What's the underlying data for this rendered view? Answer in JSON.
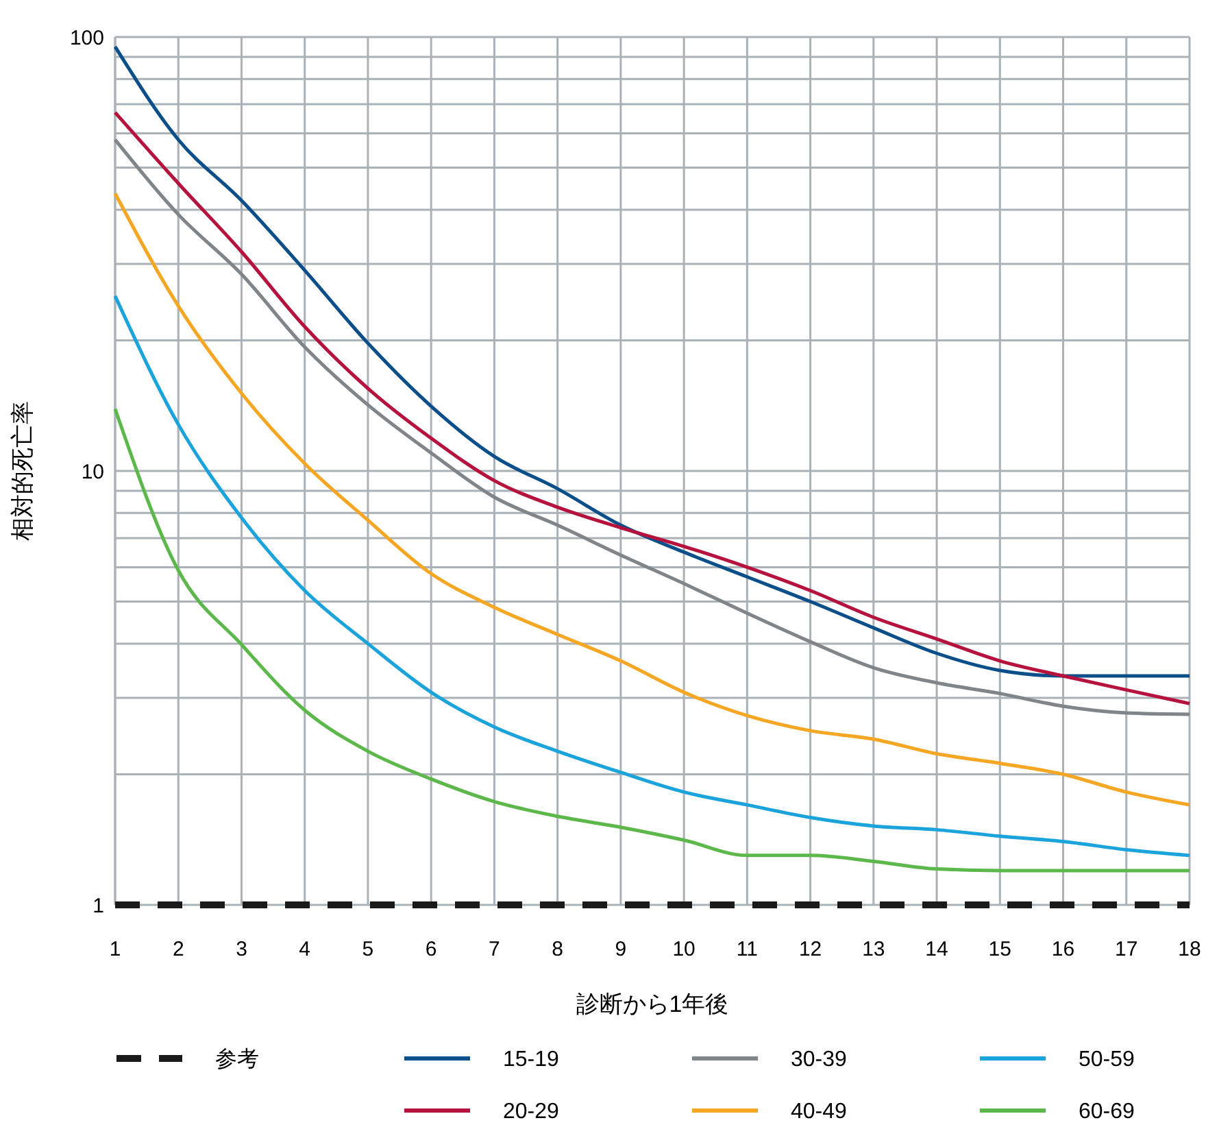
{
  "chart_data": {
    "type": "line",
    "xlabel": "診断から1年後",
    "ylabel": "相対的死亡率",
    "log": "y",
    "grid": true,
    "legend": "bottom",
    "marker": "none",
    "x": [
      1,
      2,
      3,
      4,
      5,
      6,
      7,
      8,
      9,
      10,
      11,
      12,
      13,
      14,
      15,
      16,
      17,
      18
    ],
    "xlim": [
      1,
      18
    ],
    "xticks": [
      1,
      2,
      3,
      4,
      5,
      6,
      7,
      8,
      9,
      10,
      11,
      12,
      13,
      14,
      15,
      16,
      17,
      18
    ],
    "ylim": [
      1,
      100
    ],
    "yticks": [
      1,
      {
        "value": 2,
        "label": null
      },
      {
        "value": 3,
        "label": null
      },
      {
        "value": 4,
        "label": null
      },
      {
        "value": 5,
        "label": null
      },
      {
        "value": 6,
        "label": null
      },
      {
        "value": 7,
        "label": null
      },
      {
        "value": 8,
        "label": null
      },
      {
        "value": 9,
        "label": null
      },
      10,
      {
        "value": 20,
        "label": null
      },
      {
        "value": 30,
        "label": null
      },
      {
        "value": 40,
        "label": null
      },
      {
        "value": 50,
        "label": null
      },
      {
        "value": 60,
        "label": null
      },
      {
        "value": 70,
        "label": null
      },
      {
        "value": 80,
        "label": null
      },
      {
        "value": 90,
        "label": null
      },
      100
    ],
    "series": [
      {
        "name": "参考",
        "color": "#1a1a1a",
        "line_style": "dashed",
        "values": [
          1,
          1,
          1,
          1,
          1,
          1,
          1,
          1,
          1,
          1,
          1,
          1,
          1,
          1,
          1,
          1,
          1,
          1
        ]
      },
      {
        "name": "15-19",
        "color": "#0b4f8a",
        "values": [
          95,
          58,
          42,
          29,
          19.7,
          14.1,
          10.8,
          9.1,
          7.5,
          6.5,
          5.7,
          5.0,
          4.35,
          3.8,
          3.47,
          3.37,
          3.37,
          3.37
        ]
      },
      {
        "name": "20-29",
        "color": "#b5123e",
        "values": [
          67,
          46,
          32,
          21.5,
          15.5,
          11.9,
          9.5,
          8.25,
          7.4,
          6.7,
          6.0,
          5.3,
          4.6,
          4.1,
          3.65,
          3.37,
          3.13,
          2.91
        ]
      },
      {
        "name": "30-39",
        "color": "#7f8589",
        "values": [
          58,
          39,
          28.4,
          19.3,
          14.2,
          11,
          8.7,
          7.5,
          6.4,
          5.5,
          4.7,
          4.04,
          3.52,
          3.25,
          3.07,
          2.87,
          2.77,
          2.75
        ]
      },
      {
        "name": "40-49",
        "color": "#f5a623",
        "values": [
          43.6,
          24,
          15.1,
          10.4,
          7.7,
          5.8,
          4.85,
          4.2,
          3.65,
          3.09,
          2.73,
          2.52,
          2.41,
          2.23,
          2.12,
          2.0,
          1.82,
          1.7
        ]
      },
      {
        "name": "50-59",
        "color": "#1ba3dc",
        "values": [
          25.3,
          12.8,
          7.8,
          5.3,
          4.0,
          3.09,
          2.57,
          2.26,
          2.02,
          1.82,
          1.7,
          1.59,
          1.52,
          1.49,
          1.44,
          1.4,
          1.34,
          1.3
        ]
      },
      {
        "name": "60-69",
        "color": "#5cb84a",
        "values": [
          13.9,
          5.9,
          3.98,
          2.81,
          2.26,
          1.95,
          1.73,
          1.6,
          1.51,
          1.41,
          1.3,
          1.3,
          1.26,
          1.21,
          1.2,
          1.2,
          1.2,
          1.2
        ]
      }
    ]
  }
}
